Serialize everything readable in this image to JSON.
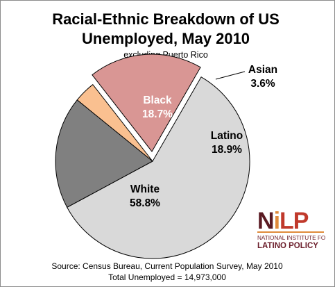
{
  "chart_data": {
    "type": "pie",
    "title": [
      "Racial-Ethnic  Breakdown of US",
      "Unemployed, May 2010"
    ],
    "subtitle": "excluding Puerto Rico",
    "slices": [
      {
        "name": "Latino",
        "value": 18.9,
        "value_label": "18.9%",
        "color": "#d99694",
        "exploded": true
      },
      {
        "name": "White",
        "value": 58.8,
        "value_label": "58.8%",
        "color": "#d9d9d9",
        "exploded": false
      },
      {
        "name": "Black",
        "value": 18.7,
        "value_label": "18.7%",
        "color": "#808080",
        "exploded": false
      },
      {
        "name": "Asian",
        "value": 3.6,
        "value_label": "3.6%",
        "color": "#fac090",
        "exploded": false
      }
    ],
    "source": "Source: Census Bureau, Current Population Survey, May 2010",
    "total": "Total Unemployed = 14,973,000"
  },
  "logo": {
    "wordmark": "NiLP",
    "line1": "NATIONAL INSTITUTE FOR",
    "line2": "LATINO POLICY",
    "colors": {
      "n": "#5a1a22",
      "i": "#e08a3a",
      "lp": "#c0392b",
      "rule": "#e08a3a"
    }
  }
}
